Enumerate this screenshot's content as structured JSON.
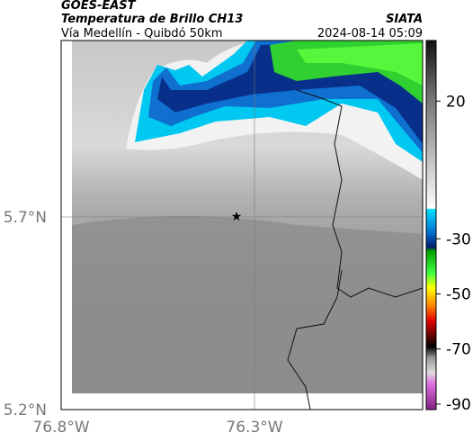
{
  "header": {
    "satellite": "GOES-EAST",
    "product": "Temperatura de Brillo CH13",
    "agency": "SIATA",
    "region": "Vía Medellín - Quibdó 50km",
    "timestamp": "2024-08-14 05:09"
  },
  "map": {
    "lat_labels": [
      "5.7°N",
      "5.2°N"
    ],
    "lon_labels": [
      "76.8°W",
      "76.3°W"
    ]
  },
  "colorbar": {
    "range": [
      -92,
      42
    ],
    "ticks": [
      20,
      -30,
      -50,
      -70,
      -90
    ]
  }
}
